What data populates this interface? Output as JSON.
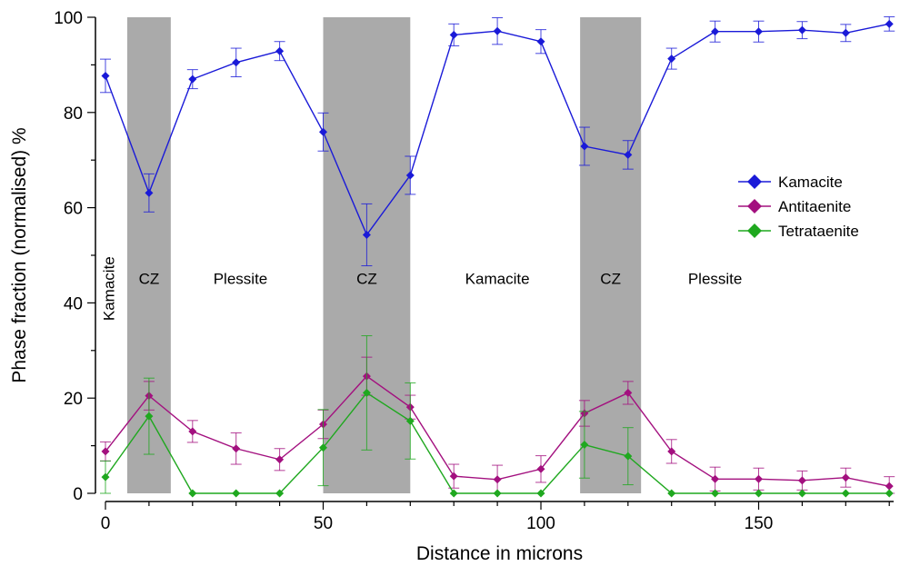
{
  "chart_data": {
    "type": "line",
    "xlabel": "Distance in microns",
    "ylabel": "Phase fraction (normalised) %",
    "xlim": [
      0,
      181
    ],
    "ylim": [
      0,
      100
    ],
    "x_ticks": [
      0,
      50,
      100,
      150
    ],
    "y_ticks": [
      0,
      20,
      40,
      60,
      80,
      100
    ],
    "legend_position": "right",
    "shaded_regions": [
      {
        "x0": 5,
        "x1": 15,
        "color": "#aaaaaa"
      },
      {
        "x0": 50,
        "x1": 70,
        "color": "#aaaaaa"
      },
      {
        "x0": 109,
        "x1": 123,
        "color": "#aaaaaa"
      }
    ],
    "region_labels": [
      {
        "text": "Kamacite",
        "x": 2,
        "y": 43,
        "rotated": true
      },
      {
        "text": "CZ",
        "x": 10,
        "y": 44
      },
      {
        "text": "Plessite",
        "x": 31,
        "y": 44
      },
      {
        "text": "CZ",
        "x": 60,
        "y": 44
      },
      {
        "text": "Kamacite",
        "x": 90,
        "y": 44
      },
      {
        "text": "CZ",
        "x": 116,
        "y": 44
      },
      {
        "text": "Plessite",
        "x": 140,
        "y": 44
      }
    ],
    "series": [
      {
        "name": "Kamacite",
        "color": "#1a1ad8",
        "x": [
          0,
          10,
          20,
          30,
          40,
          50,
          60,
          70,
          80,
          90,
          100,
          110,
          120,
          130,
          140,
          150,
          160,
          170,
          180
        ],
        "y": [
          87.7,
          63.1,
          87.0,
          90.5,
          92.9,
          75.9,
          54.3,
          66.8,
          96.3,
          97.1,
          94.9,
          72.9,
          71.1,
          91.3,
          97.0,
          97.0,
          97.3,
          96.7,
          98.6
        ],
        "err": [
          3.5,
          4.0,
          2.0,
          3.0,
          2.0,
          4.0,
          6.5,
          4.0,
          2.3,
          2.8,
          2.5,
          4.0,
          3.0,
          2.2,
          2.2,
          2.2,
          1.8,
          1.8,
          1.5
        ]
      },
      {
        "name": "Antitaenite",
        "color": "#a3107f",
        "x": [
          0,
          10,
          20,
          30,
          40,
          50,
          60,
          70,
          80,
          90,
          100,
          110,
          120,
          130,
          140,
          150,
          160,
          170,
          180
        ],
        "y": [
          8.8,
          20.5,
          13.0,
          9.4,
          7.1,
          14.5,
          24.6,
          18.1,
          3.6,
          2.9,
          5.1,
          16.8,
          21.1,
          8.8,
          3.0,
          3.0,
          2.7,
          3.3,
          1.5
        ],
        "err": [
          2.0,
          3.0,
          2.3,
          3.3,
          2.3,
          3.0,
          4.0,
          2.5,
          2.5,
          3.0,
          2.8,
          2.7,
          2.4,
          2.5,
          2.5,
          2.3,
          2.0,
          2.0,
          2.0
        ]
      },
      {
        "name": "Tetrataenite",
        "color": "#1fa81f",
        "x": [
          0,
          10,
          20,
          30,
          40,
          50,
          60,
          70,
          80,
          90,
          100,
          110,
          120,
          130,
          140,
          150,
          160,
          170,
          180
        ],
        "y": [
          3.4,
          16.2,
          0,
          0,
          0,
          9.6,
          21.1,
          15.2,
          0,
          0,
          0,
          10.2,
          7.8,
          0,
          0,
          0,
          0,
          0,
          0
        ],
        "err": [
          3.4,
          8.0,
          0,
          0,
          0,
          8.0,
          12.0,
          8.0,
          0,
          0,
          0,
          7.0,
          6.0,
          0,
          0,
          0,
          0,
          0,
          0
        ]
      }
    ]
  }
}
